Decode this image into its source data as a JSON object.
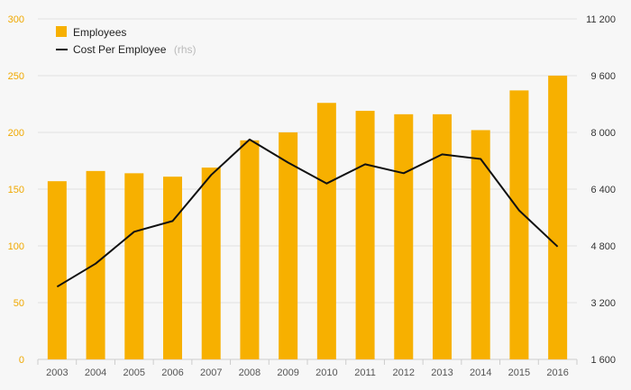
{
  "chart_data": {
    "type": "bar",
    "categories": [
      "2003",
      "2004",
      "2005",
      "2006",
      "2007",
      "2008",
      "2009",
      "2010",
      "2011",
      "2012",
      "2013",
      "2014",
      "2015",
      "2016"
    ],
    "series": [
      {
        "name": "Employees",
        "type": "bar",
        "axis": "left",
        "color": "#f7b000",
        "values": [
          157,
          166,
          164,
          161,
          169,
          193,
          200,
          226,
          219,
          216,
          216,
          202,
          237,
          250
        ]
      },
      {
        "name": "Cost Per Employee",
        "name_suffix": "(rhs)",
        "type": "line",
        "axis": "right",
        "color": "#111111",
        "values": [
          3650,
          4300,
          5200,
          5500,
          6800,
          7800,
          7150,
          6560,
          7100,
          6850,
          7380,
          7250,
          5800,
          4780
        ]
      }
    ],
    "y_left": {
      "min": 0,
      "max": 300,
      "ticks": [
        "0",
        "50",
        "100",
        "150",
        "200",
        "250",
        "300"
      ],
      "tick_color": "#f0a800"
    },
    "y_right": {
      "min": 1600,
      "max": 11200,
      "ticks": [
        "1 600",
        "3 200",
        "4 800",
        "6 400",
        "8 000",
        "9 600",
        "11 200"
      ]
    },
    "grid": true,
    "legend_position": "top-left"
  }
}
